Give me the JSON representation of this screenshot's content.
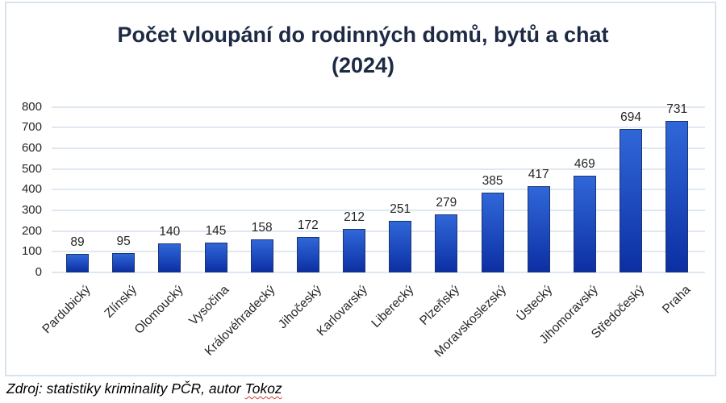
{
  "chart_data": {
    "type": "bar",
    "title": "Počet vloupání do rodinných domů, bytů a chat",
    "subtitle": "(2024)",
    "categories": [
      "Pardubický",
      "Zlínský",
      "Olomoucký",
      "Vysočina",
      "Královéhradecký",
      "Jihočeský",
      "Karlovarský",
      "Liberecký",
      "Plzeňský",
      "Moravskoslezský",
      "Ústecký",
      "Jihomoravský",
      "Středočeský",
      "Praha"
    ],
    "values": [
      89,
      95,
      140,
      145,
      158,
      172,
      212,
      251,
      279,
      385,
      417,
      469,
      694,
      731
    ],
    "xlabel": "",
    "ylabel": "",
    "ylim": [
      0,
      800
    ],
    "ytick_step": 100,
    "grid": true,
    "legend": "none",
    "data_labels": true,
    "colors": {
      "bar_top": "#3067d8",
      "bar_bottom": "#0c2fa2",
      "bar_border": "#1a3570",
      "gridline": "#dfe8f1",
      "title": "#1e2a45",
      "labels": "#262626"
    }
  },
  "footer": {
    "source_prefix": "Zdroj: statistiky kriminality PČR, autor ",
    "author": "Tokoz"
  }
}
